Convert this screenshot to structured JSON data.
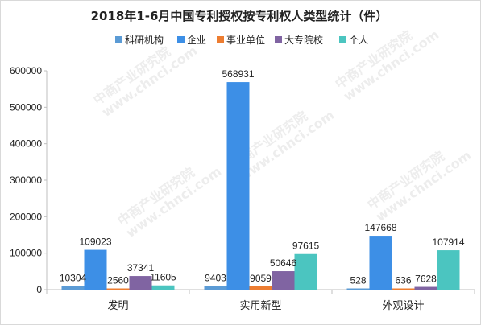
{
  "chart_data": {
    "type": "bar",
    "title": "2018年1-6月中国专利授权按专利权人类型统计（件）",
    "categories": [
      "发明",
      "实用新型",
      "外观设计"
    ],
    "series": [
      {
        "name": "科研机构",
        "color": "#5b9bd5",
        "values": [
          10304,
          9403,
          528
        ]
      },
      {
        "name": "企业",
        "color": "#3d8fe6",
        "values": [
          109023,
          568931,
          147668
        ]
      },
      {
        "name": "事业单位",
        "color": "#ed7d31",
        "values": [
          2560,
          9059,
          636
        ]
      },
      {
        "name": "大专院校",
        "color": "#8064a2",
        "values": [
          37341,
          50646,
          7628
        ]
      },
      {
        "name": "个人",
        "color": "#4bc5c0",
        "values": [
          11605,
          97615,
          107914
        ]
      }
    ],
    "y_ticks": [
      "0",
      "100000",
      "200000",
      "300000",
      "400000",
      "500000",
      "600000"
    ],
    "ylim": [
      0,
      600000
    ],
    "grid": false,
    "legend_position": "top"
  },
  "watermark": {
    "lines": [
      "中商产业研究院",
      "www.chnci.com"
    ]
  }
}
